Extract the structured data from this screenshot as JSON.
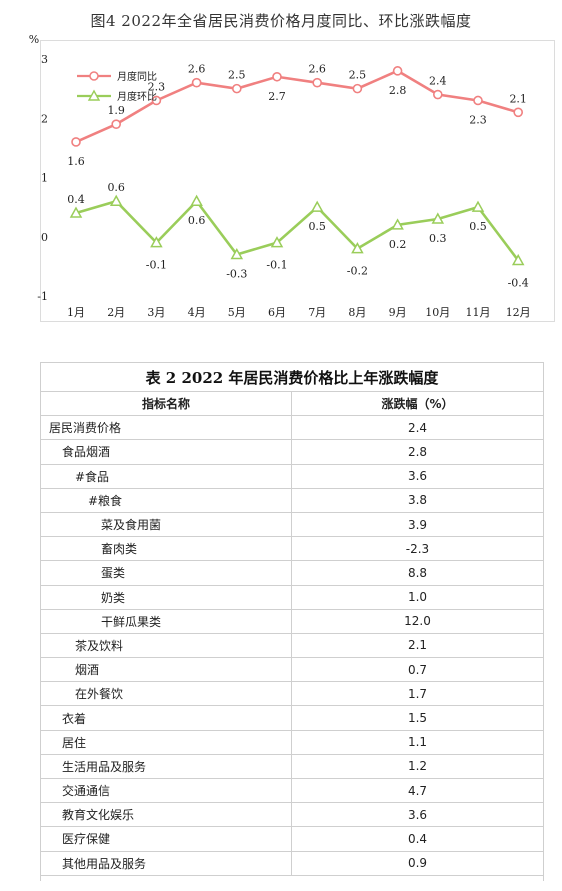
{
  "chart": {
    "title": "图4  2022年全省居民消费价格月度同比、环比涨跌幅度",
    "unit": "%"
  },
  "chart_data": {
    "type": "line",
    "title": "图4  2022年全省居民消费价格月度同比、环比涨跌幅度",
    "ylabel": "%",
    "ylim": [
      -1,
      3
    ],
    "yticks": [
      "3",
      "2",
      "1",
      "0",
      "-1"
    ],
    "categories": [
      "1月",
      "2月",
      "3月",
      "4月",
      "5月",
      "6月",
      "7月",
      "8月",
      "9月",
      "10月",
      "11月",
      "12月"
    ],
    "legend_position": "top-left",
    "grid": false,
    "series": [
      {
        "name": "月度同比",
        "color": "#f08080",
        "marker": "circle",
        "values": [
          1.6,
          1.9,
          2.3,
          2.6,
          2.5,
          2.7,
          2.6,
          2.5,
          2.8,
          2.4,
          2.3,
          2.1
        ]
      },
      {
        "name": "月度环比",
        "color": "#9acd5a",
        "marker": "triangle",
        "values": [
          0.4,
          0.6,
          -0.1,
          0.6,
          -0.3,
          -0.1,
          0.5,
          -0.2,
          0.2,
          0.3,
          0.5,
          -0.4
        ]
      }
    ]
  },
  "table": {
    "title": "表 2    2022 年居民消费价格比上年涨跌幅度",
    "headers": [
      "指标名称",
      "涨跌幅（%）"
    ],
    "rows": [
      {
        "name": "居民消费价格",
        "value": "2.4",
        "indent": 0
      },
      {
        "name": "食品烟酒",
        "value": "2.8",
        "indent": 1
      },
      {
        "name": "#食品",
        "value": "3.6",
        "indent": 2
      },
      {
        "name": "#粮食",
        "value": "3.8",
        "indent": 3
      },
      {
        "name": "菜及食用菌",
        "value": "3.9",
        "indent": 4
      },
      {
        "name": "畜肉类",
        "value": "-2.3",
        "indent": 4
      },
      {
        "name": "蛋类",
        "value": "8.8",
        "indent": 4
      },
      {
        "name": "奶类",
        "value": "1.0",
        "indent": 4
      },
      {
        "name": "干鲜瓜果类",
        "value": "12.0",
        "indent": 4
      },
      {
        "name": "茶及饮料",
        "value": "2.1",
        "indent": 2
      },
      {
        "name": "烟酒",
        "value": "0.7",
        "indent": 2
      },
      {
        "name": "在外餐饮",
        "value": "1.7",
        "indent": 2
      },
      {
        "name": "衣着",
        "value": "1.5",
        "indent": 1
      },
      {
        "name": "居住",
        "value": "1.1",
        "indent": 1
      },
      {
        "name": "生活用品及服务",
        "value": "1.2",
        "indent": 1
      },
      {
        "name": "交通通信",
        "value": "4.7",
        "indent": 1
      },
      {
        "name": "教育文化娱乐",
        "value": "3.6",
        "indent": 1
      },
      {
        "name": "医疗保健",
        "value": "0.4",
        "indent": 1
      },
      {
        "name": "其他用品及服务",
        "value": "0.9",
        "indent": 1
      }
    ]
  }
}
